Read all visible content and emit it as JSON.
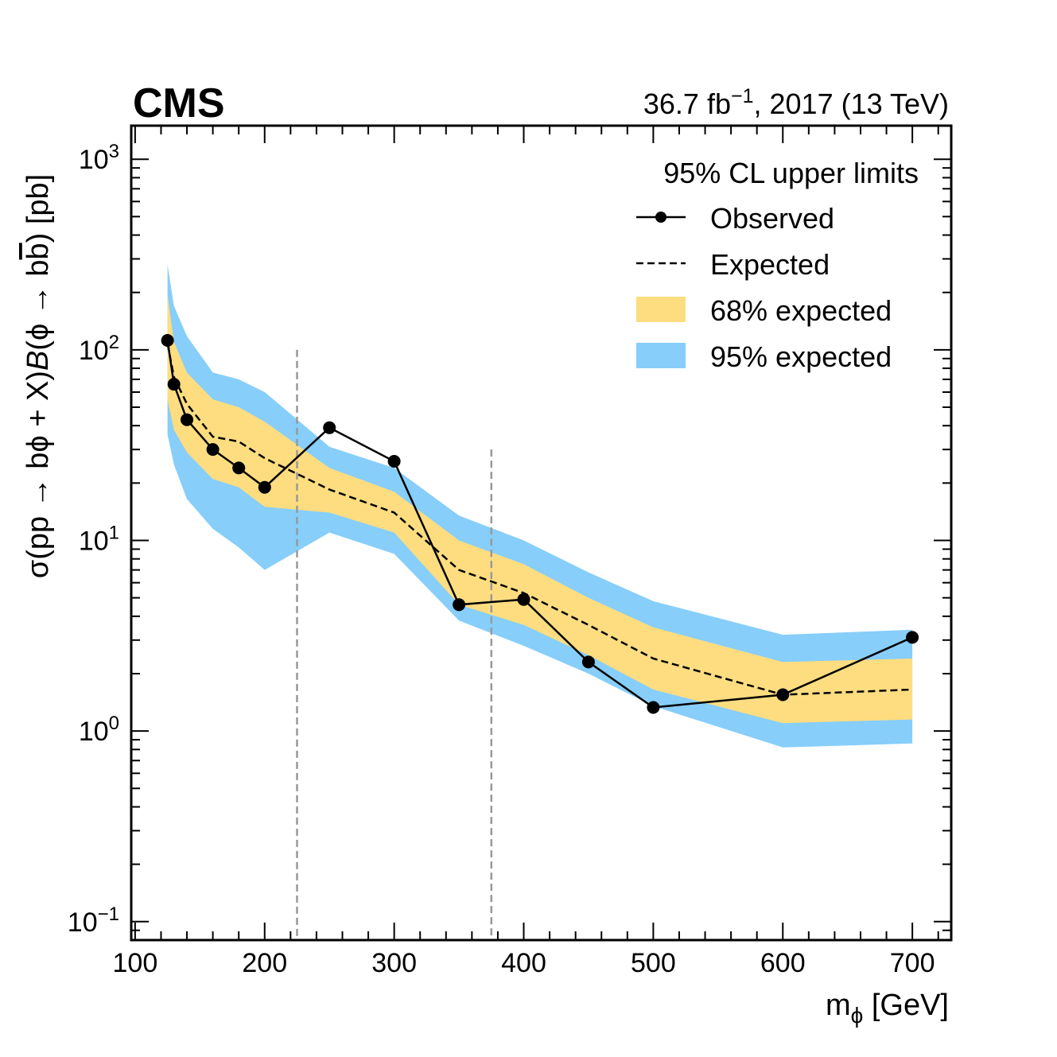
{
  "header": {
    "experiment": "CMS",
    "lumi_value": "36.7 fb",
    "lumi_exponent": "−1",
    "lumi_rest": ", 2017 (13 TeV)"
  },
  "legend": {
    "title": "95% CL upper limits",
    "observed": "Observed",
    "expected": "Expected",
    "band68": "68% expected",
    "band95": "95% expected"
  },
  "axes": {
    "xlabel_main": "m",
    "xlabel_sub": "ϕ",
    "xlabel_unit": " [GeV]",
    "ylabel_p1": "σ(pp → bϕ + X)",
    "ylabel_B": "B",
    "ylabel_p2": "(ϕ → b",
    "ylabel_bbar": "b",
    "ylabel_p3": ") [pb]",
    "x_ticks": [
      "100",
      "200",
      "300",
      "400",
      "500",
      "600",
      "700"
    ],
    "y_tick_base": "10",
    "y_tick_exps": [
      "−1",
      "0",
      "1",
      "2",
      "3"
    ]
  },
  "colors": {
    "band95": "#87cefa",
    "band68": "#fddd80",
    "observed": "#000000",
    "expected": "#000000",
    "ref_lines": "#999999"
  },
  "chart_data": {
    "type": "line",
    "title": "",
    "xlabel": "m_ϕ [GeV]",
    "ylabel": "σ(pp → bϕ + X)B(ϕ → bb̄) [pb]",
    "xlim": [
      97,
      730
    ],
    "ylim": [
      0.08,
      1500
    ],
    "yscale": "log",
    "reference_lines": [
      {
        "x": 225,
        "y_top": 100
      },
      {
        "x": 375,
        "y_top": 30
      }
    ],
    "x": [
      125,
      130,
      140,
      160,
      180,
      200,
      250,
      300,
      350,
      400,
      450,
      500,
      600,
      700
    ],
    "series": [
      {
        "name": "Observed",
        "values": [
          112,
          66,
          43,
          30,
          24,
          19,
          39,
          26,
          4.6,
          4.9,
          2.3,
          1.33,
          1.55,
          3.1
        ]
      },
      {
        "name": "Expected",
        "values": [
          108,
          72,
          52,
          35,
          33,
          27,
          18.5,
          14,
          7.0,
          5.3,
          3.6,
          2.4,
          1.55,
          1.65
        ]
      },
      {
        "name": "95% expected low",
        "values": [
          36,
          25,
          16.5,
          11.5,
          9.2,
          7.0,
          11,
          8.5,
          3.8,
          2.8,
          2.0,
          1.35,
          0.82,
          0.86
        ]
      },
      {
        "name": "68% expected low",
        "values": [
          55,
          38,
          29,
          21,
          19,
          15,
          14,
          11,
          4.6,
          3.6,
          2.5,
          1.65,
          1.1,
          1.15
        ]
      },
      {
        "name": "68% expected high",
        "values": [
          195,
          110,
          76,
          55,
          50,
          42,
          24,
          18,
          10,
          7.5,
          5.0,
          3.5,
          2.3,
          2.4
        ]
      },
      {
        "name": "95% expected high",
        "values": [
          280,
          170,
          118,
          76,
          70,
          60,
          31,
          24,
          13.5,
          10,
          6.8,
          4.8,
          3.2,
          3.4
        ]
      }
    ]
  }
}
